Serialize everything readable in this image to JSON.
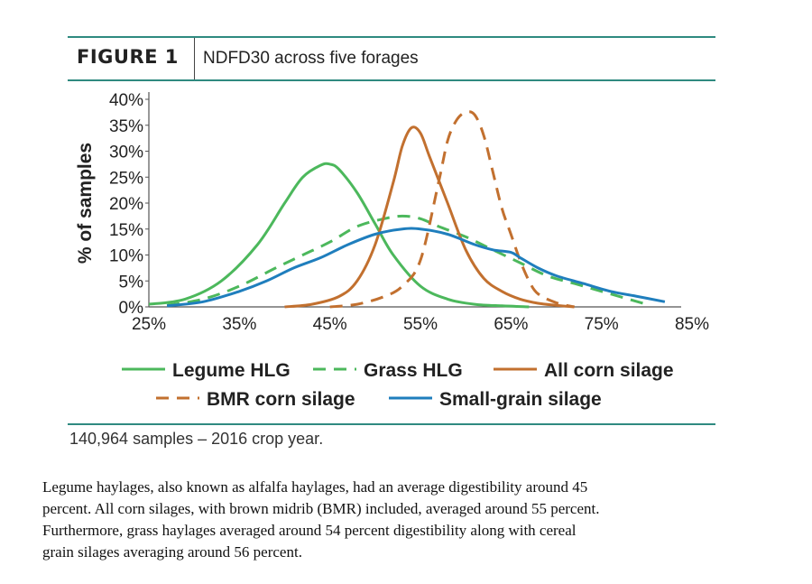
{
  "figure": {
    "label": "FIGURE 1",
    "title": "NDFD30 across five forages"
  },
  "chart_data": {
    "type": "line",
    "title": "NDFD30 across five forages",
    "xlabel": "",
    "ylabel": "% of samples",
    "xlim": [
      25,
      85
    ],
    "ylim": [
      0,
      40
    ],
    "x_ticks": [
      25,
      35,
      45,
      55,
      65,
      75,
      85
    ],
    "x_tick_labels": [
      "25%",
      "35%",
      "45%",
      "55%",
      "65%",
      "75%",
      "85%"
    ],
    "y_ticks": [
      0,
      5,
      10,
      15,
      20,
      25,
      30,
      35,
      40
    ],
    "y_tick_labels": [
      "0%",
      "5%",
      "10%",
      "15%",
      "20%",
      "25%",
      "30%",
      "35%",
      "40%"
    ],
    "grid": false,
    "legend_position": "bottom",
    "series": [
      {
        "name": "Legume HLG",
        "color": "#4cb85c",
        "dash": "solid",
        "x": [
          25,
          29,
          33,
          37,
          40,
          42,
          44,
          45,
          46,
          48,
          50,
          52,
          55,
          58,
          61,
          64,
          67
        ],
        "values": [
          0.5,
          1.5,
          5,
          12,
          20,
          25,
          27.3,
          27.5,
          26.5,
          22,
          16,
          10,
          4,
          1.5,
          0.5,
          0.2,
          0
        ]
      },
      {
        "name": "Grass HLG",
        "color": "#4cb85c",
        "dash": "dashed",
        "x": [
          27,
          31,
          35,
          39,
          42,
          45,
          48,
          51,
          53,
          55,
          57,
          60,
          63,
          66,
          69,
          72,
          75,
          78,
          80
        ],
        "values": [
          0.3,
          1.5,
          4,
          7.5,
          10,
          12.5,
          15.5,
          17,
          17.5,
          17,
          15.5,
          13.5,
          11,
          8.5,
          6,
          4.5,
          3,
          1.5,
          0.5
        ]
      },
      {
        "name": "All corn silage",
        "color": "#c2702f",
        "dash": "solid",
        "x": [
          40,
          43,
          46,
          48,
          50,
          52,
          53,
          54,
          55,
          56,
          58,
          60,
          62,
          64,
          66,
          68,
          70,
          72
        ],
        "values": [
          0,
          0.5,
          2,
          5,
          12,
          24,
          31,
          34.5,
          33.5,
          29,
          20,
          11,
          5.5,
          3,
          1.5,
          0.7,
          0.3,
          0
        ]
      },
      {
        "name": "BMR corn silage",
        "color": "#c2702f",
        "dash": "dashed",
        "x": [
          45,
          48,
          51,
          53,
          55,
          57,
          58,
          59,
          60,
          61,
          62,
          63,
          64,
          65,
          66,
          67,
          68,
          70,
          72
        ],
        "values": [
          0,
          0.5,
          2,
          4,
          9,
          24,
          32,
          36,
          37.5,
          37,
          33,
          26,
          19,
          14,
          9,
          5,
          2.5,
          0.8,
          0
        ]
      },
      {
        "name": "Small-grain silage",
        "color": "#1f7ebd",
        "dash": "solid",
        "x": [
          27,
          31,
          35,
          38,
          41,
          44,
          47,
          50,
          53,
          55,
          58,
          61,
          63,
          65,
          66,
          68,
          70,
          73,
          76,
          79,
          82
        ],
        "values": [
          0.2,
          1,
          3,
          5,
          7.5,
          9.5,
          12,
          14,
          15,
          15,
          14,
          12,
          11,
          10.5,
          9.5,
          7.5,
          6,
          4.5,
          3,
          2,
          1
        ]
      }
    ]
  },
  "footnote": "140,964 samples – 2016 crop year.",
  "paragraph": {
    "lines": [
      "Legume haylages, also known as alfalfa haylages, had an average digestibility around 45",
      "percent. All corn silages, with brown midrib (BMR) included, averaged around 55 percent.",
      "Furthermore, grass haylages averaged around 54 percent digestibility along with cereal",
      "grain silages averaging around 56 percent."
    ]
  }
}
